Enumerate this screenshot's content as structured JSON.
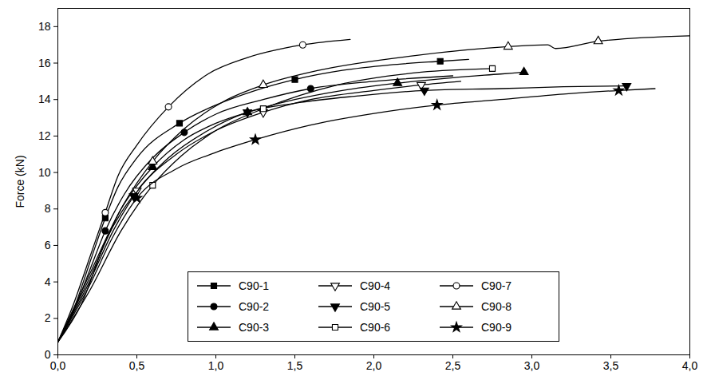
{
  "chart_data": {
    "type": "line",
    "y_label": "Force (kN)",
    "xlim": [
      0,
      4
    ],
    "xticks": [
      {
        "value": 0,
        "label": "0,0"
      },
      {
        "value": 0.5,
        "label": "0,5"
      },
      {
        "value": 1,
        "label": "1,0"
      },
      {
        "value": 1.5,
        "label": "1,5"
      },
      {
        "value": 2,
        "label": "2,0"
      },
      {
        "value": 2.5,
        "label": "2,5"
      },
      {
        "value": 3,
        "label": "3,0"
      },
      {
        "value": 3.5,
        "label": "3,5"
      },
      {
        "value": 4,
        "label": "4,0"
      }
    ],
    "ylim": [
      0,
      19
    ],
    "yticks": [
      0,
      2,
      4,
      6,
      8,
      10,
      12,
      14,
      16,
      18
    ],
    "grid": false,
    "legend": "lower center",
    "series": [
      {
        "name": "C90-1",
        "color": "#000000",
        "marker": "square",
        "x": [
          0,
          0.1,
          0.2,
          0.3,
          0.38,
          0.5,
          0.77,
          1.0,
          1.25,
          1.5,
          1.8,
          2.1,
          2.42,
          2.6
        ],
        "values": [
          0.7,
          2.5,
          5.0,
          7.5,
          9.2,
          10.8,
          12.7,
          13.7,
          14.5,
          15.1,
          15.6,
          15.9,
          16.1,
          16.2
        ]
      },
      {
        "name": "C90-2",
        "color": "#000000",
        "marker": "circle",
        "x": [
          0,
          0.1,
          0.2,
          0.3,
          0.42,
          0.6,
          0.8,
          1.0,
          1.3,
          1.6,
          2.0,
          2.5
        ],
        "values": [
          0.7,
          2.4,
          4.6,
          6.8,
          8.8,
          10.8,
          12.2,
          13.2,
          14.0,
          14.6,
          15.0,
          15.3
        ]
      },
      {
        "name": "C90-3",
        "color": "#000000",
        "marker": "triangle",
        "x": [
          0,
          0.2,
          0.4,
          0.6,
          0.8,
          1.0,
          1.2,
          1.5,
          1.8,
          2.15,
          2.5,
          2.8,
          2.95
        ],
        "values": [
          0.7,
          4.4,
          8.0,
          10.3,
          11.8,
          12.7,
          13.3,
          14.0,
          14.5,
          14.9,
          15.2,
          15.4,
          15.5
        ]
      },
      {
        "name": "C90-4",
        "color": "#000000",
        "marker": "triangle-down-open",
        "x": [
          0,
          0.15,
          0.3,
          0.5,
          0.75,
          1.0,
          1.3,
          1.6,
          2.0,
          2.3,
          2.55
        ],
        "values": [
          0.7,
          2.8,
          6.2,
          9.0,
          11.0,
          12.3,
          13.3,
          14.0,
          14.5,
          14.8,
          15.0
        ]
      },
      {
        "name": "C90-5",
        "color": "#000000",
        "marker": "triangle-down",
        "x": [
          0,
          0.2,
          0.35,
          0.48,
          0.7,
          0.95,
          1.2,
          1.5,
          1.9,
          2.32,
          2.8,
          3.2,
          3.6
        ],
        "values": [
          0.7,
          4.0,
          6.8,
          8.7,
          10.8,
          12.3,
          13.3,
          13.8,
          14.2,
          14.5,
          14.6,
          14.7,
          14.75
        ]
      },
      {
        "name": "C90-6",
        "color": "#000000",
        "marker": "square-open",
        "x": [
          0,
          0.2,
          0.4,
          0.6,
          0.78,
          1.0,
          1.3,
          1.77,
          2.3,
          2.75
        ],
        "values": [
          0.7,
          3.5,
          6.8,
          9.3,
          10.9,
          12.3,
          13.5,
          14.8,
          15.5,
          15.7
        ]
      },
      {
        "name": "C90-7",
        "color": "#000000",
        "marker": "circle-open",
        "x": [
          0,
          0.1,
          0.2,
          0.3,
          0.38,
          0.5,
          0.7,
          0.95,
          1.2,
          1.55,
          1.85
        ],
        "values": [
          0.7,
          2.8,
          5.3,
          7.8,
          9.8,
          11.5,
          13.6,
          15.4,
          16.3,
          17.0,
          17.3
        ]
      },
      {
        "name": "C90-8",
        "color": "#000000",
        "marker": "triangle-open",
        "x": [
          0,
          0.2,
          0.4,
          0.6,
          0.8,
          1.05,
          1.3,
          1.65,
          2.25,
          2.85,
          3.1,
          3.15,
          3.42,
          4.0
        ],
        "values": [
          0.7,
          4.2,
          8.0,
          10.6,
          12.4,
          13.9,
          14.8,
          15.6,
          16.4,
          16.9,
          17.0,
          16.8,
          17.2,
          17.5
        ]
      },
      {
        "name": "C90-9",
        "color": "#000000",
        "marker": "star",
        "x": [
          0,
          0.2,
          0.35,
          0.5,
          0.75,
          1.0,
          1.25,
          1.6,
          2.05,
          2.4,
          2.8,
          3.2,
          3.55,
          3.78
        ],
        "values": [
          0.7,
          3.8,
          6.5,
          8.6,
          10.2,
          11.1,
          11.8,
          12.6,
          13.3,
          13.7,
          14.0,
          14.3,
          14.5,
          14.6
        ]
      }
    ]
  }
}
